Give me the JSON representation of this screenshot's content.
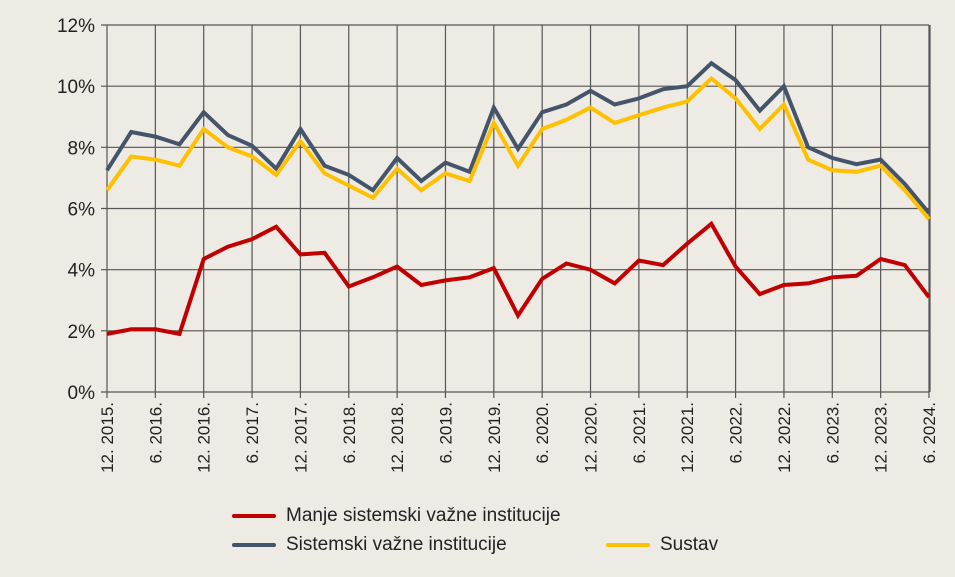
{
  "chart_data": {
    "type": "line",
    "title": "",
    "xlabel": "",
    "ylabel": "",
    "ylim": [
      0,
      12
    ],
    "yticks": [
      "0%",
      "2%",
      "4%",
      "6%",
      "8%",
      "10%",
      "12%"
    ],
    "ytick_values": [
      0,
      2,
      4,
      6,
      8,
      10,
      12
    ],
    "xtick_labels": [
      "12. 2015.",
      "6. 2016.",
      "12. 2016.",
      "6. 2017.",
      "12. 2017.",
      "6. 2018.",
      "12. 2018.",
      "6. 2019.",
      "12. 2019.",
      "6. 2020.",
      "12. 2020.",
      "6. 2021.",
      "12. 2021.",
      "6. 2022.",
      "12. 2022.",
      "6. 2023.",
      "12. 2023.",
      "6. 2024."
    ],
    "grid": true,
    "legend_position": "bottom",
    "points_per_series": 35,
    "series": [
      {
        "name": "Manje sistemski važne institucije",
        "color": "#c00000",
        "values": [
          1.9,
          2.05,
          2.05,
          1.9,
          4.35,
          4.75,
          5.0,
          5.4,
          4.5,
          4.55,
          3.45,
          3.75,
          4.1,
          3.5,
          3.65,
          3.75,
          4.05,
          2.5,
          3.7,
          4.2,
          4.0,
          3.55,
          4.3,
          4.15,
          4.85,
          5.5,
          4.1,
          3.2,
          3.5,
          3.55,
          3.75,
          3.8,
          4.35,
          4.15,
          3.1
        ]
      },
      {
        "name": "Sistemski važne institucije",
        "color": "#44546a",
        "values": [
          7.25,
          8.5,
          8.35,
          8.1,
          9.15,
          8.4,
          8.05,
          7.3,
          8.6,
          7.4,
          7.1,
          6.6,
          7.65,
          6.9,
          7.5,
          7.2,
          9.3,
          7.95,
          9.15,
          9.4,
          9.85,
          9.4,
          9.6,
          9.9,
          10.0,
          10.75,
          10.2,
          9.2,
          10.0,
          8.0,
          7.65,
          7.45,
          7.6,
          6.8,
          5.85
        ]
      },
      {
        "name": "Sustav",
        "color": "#ffc000",
        "values": [
          6.6,
          7.7,
          7.6,
          7.4,
          8.6,
          8.0,
          7.7,
          7.1,
          8.2,
          7.15,
          6.75,
          6.35,
          7.3,
          6.6,
          7.15,
          6.9,
          8.8,
          7.4,
          8.6,
          8.9,
          9.3,
          8.8,
          9.05,
          9.3,
          9.5,
          10.25,
          9.6,
          8.6,
          9.4,
          7.6,
          7.25,
          7.2,
          7.4,
          6.6,
          5.65
        ]
      }
    ]
  }
}
